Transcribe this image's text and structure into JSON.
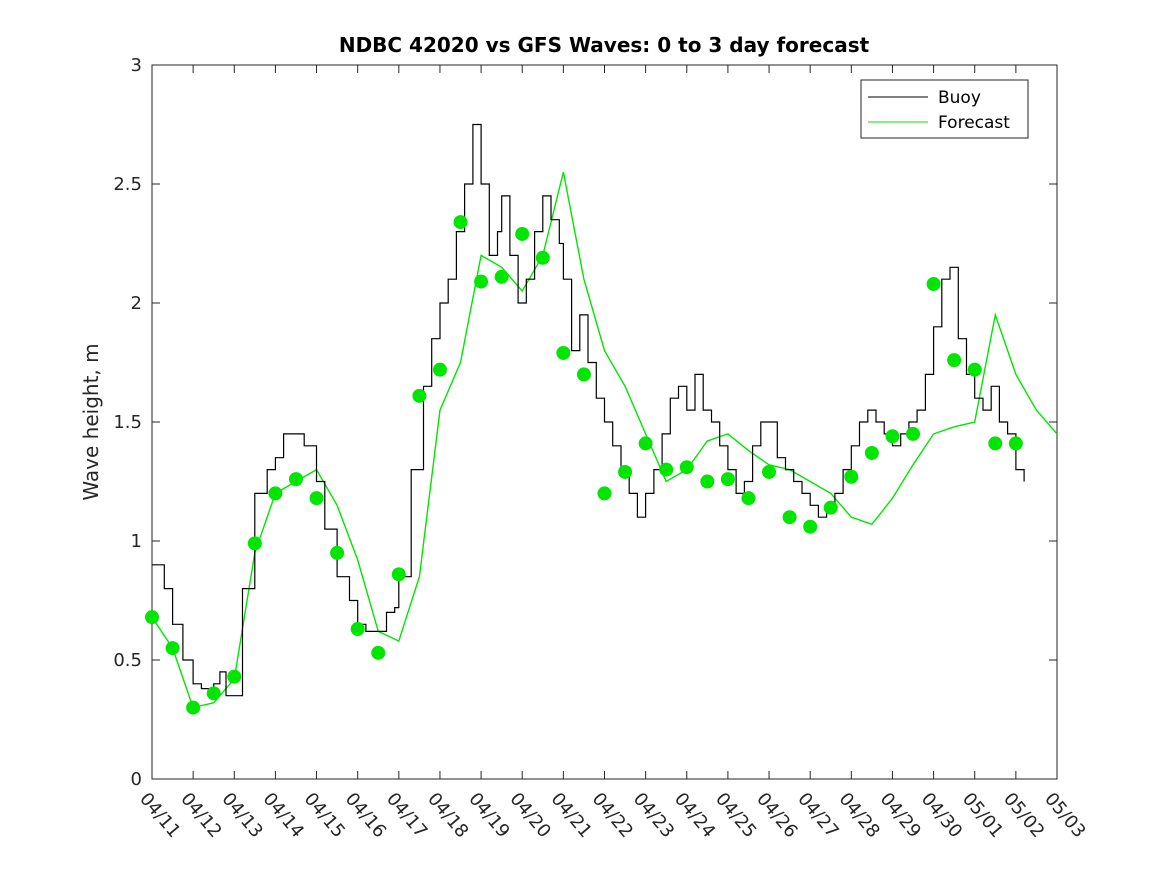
{
  "chart_data": {
    "type": "line",
    "title": "NDBC 42020 vs GFS Waves: 0 to 3 day forecast",
    "ylabel": "Wave height, m",
    "xlabel": "",
    "ylim": [
      0,
      3
    ],
    "yticks": [
      "0",
      "0.5",
      "1",
      "1.5",
      "2",
      "2.5",
      "3"
    ],
    "xlim": [
      0,
      22
    ],
    "xticks": [
      "04/11",
      "04/12",
      "04/13",
      "04/14",
      "04/15",
      "04/16",
      "04/17",
      "04/18",
      "04/19",
      "04/20",
      "04/21",
      "04/22",
      "04/23",
      "04/24",
      "04/25",
      "04/26",
      "04/27",
      "04/28",
      "04/29",
      "04/30",
      "05/01",
      "05/02",
      "05/03"
    ],
    "grid": false,
    "legend": {
      "position": "top-right",
      "entries": [
        {
          "label": "Buoy",
          "color": "#000000"
        },
        {
          "label": "Forecast",
          "color": "#00e600"
        }
      ]
    },
    "series": [
      {
        "name": "Buoy",
        "color": "#000000",
        "x": [
          0,
          0.3,
          0.5,
          0.75,
          1.0,
          1.2,
          1.5,
          1.65,
          1.8,
          2.0,
          2.2,
          2.5,
          2.8,
          3.0,
          3.2,
          3.4,
          3.7,
          4.0,
          4.2,
          4.5,
          4.8,
          5.0,
          5.2,
          5.5,
          5.7,
          5.9,
          6.0,
          6.3,
          6.6,
          6.8,
          7.0,
          7.2,
          7.4,
          7.6,
          7.8,
          8.0,
          8.2,
          8.4,
          8.5,
          8.7,
          8.9,
          9.1,
          9.3,
          9.5,
          9.7,
          9.9,
          10.0,
          10.2,
          10.4,
          10.6,
          10.8,
          11.0,
          11.2,
          11.4,
          11.6,
          11.8,
          12.0,
          12.2,
          12.4,
          12.6,
          12.8,
          13.0,
          13.2,
          13.4,
          13.6,
          13.8,
          14.0,
          14.2,
          14.4,
          14.6,
          14.8,
          15.0,
          15.2,
          15.4,
          15.6,
          15.8,
          16.0,
          16.2,
          16.4,
          16.6,
          16.8,
          17.0,
          17.2,
          17.4,
          17.6,
          17.8,
          18.0,
          18.2,
          18.4,
          18.6,
          18.8,
          19.0,
          19.2,
          19.4,
          19.6,
          19.8,
          20.0,
          20.2,
          20.4,
          20.6,
          20.8,
          21.0,
          21.2
        ],
        "values": [
          0.9,
          0.8,
          0.65,
          0.5,
          0.4,
          0.38,
          0.4,
          0.45,
          0.35,
          0.35,
          0.8,
          1.2,
          1.3,
          1.35,
          1.45,
          1.45,
          1.4,
          1.25,
          1.05,
          0.85,
          0.75,
          0.65,
          0.62,
          0.62,
          0.7,
          0.72,
          0.85,
          1.3,
          1.65,
          1.85,
          2.0,
          2.1,
          2.3,
          2.5,
          2.75,
          2.5,
          2.2,
          2.3,
          2.45,
          2.2,
          2.0,
          2.1,
          2.3,
          2.45,
          2.35,
          2.25,
          2.1,
          1.8,
          1.95,
          1.75,
          1.6,
          1.5,
          1.4,
          1.3,
          1.2,
          1.1,
          1.2,
          1.3,
          1.45,
          1.6,
          1.65,
          1.55,
          1.7,
          1.55,
          1.5,
          1.4,
          1.3,
          1.2,
          1.25,
          1.4,
          1.5,
          1.5,
          1.35,
          1.3,
          1.25,
          1.2,
          1.15,
          1.1,
          1.15,
          1.2,
          1.3,
          1.4,
          1.5,
          1.55,
          1.5,
          1.45,
          1.4,
          1.45,
          1.5,
          1.55,
          1.7,
          1.9,
          2.1,
          2.15,
          1.85,
          1.7,
          1.6,
          1.55,
          1.65,
          1.5,
          1.45,
          1.3,
          1.25
        ]
      },
      {
        "name": "Forecast",
        "color": "#00e600",
        "x": [
          0,
          0.5,
          1.0,
          1.5,
          2.0,
          2.5,
          3.0,
          3.5,
          4.0,
          4.5,
          5.0,
          5.5,
          6.0,
          6.5,
          7.0,
          7.5,
          8.0,
          8.5,
          9.0,
          9.5,
          10.0,
          10.5,
          11.0,
          11.5,
          12.0,
          12.5,
          13.0,
          13.5,
          14.0,
          14.5,
          15.0,
          15.5,
          16.0,
          16.5,
          17.0,
          17.5,
          18.0,
          18.5,
          19.0,
          19.5,
          20.0,
          20.5,
          21.0,
          21.5,
          22.0
        ],
        "values": [
          0.68,
          0.55,
          0.3,
          0.32,
          0.42,
          0.95,
          1.2,
          1.25,
          1.3,
          1.15,
          0.92,
          0.62,
          0.58,
          0.85,
          1.55,
          1.75,
          2.2,
          2.15,
          2.05,
          2.2,
          2.55,
          2.1,
          1.8,
          1.65,
          1.45,
          1.25,
          1.3,
          1.42,
          1.45,
          1.38,
          1.32,
          1.3,
          1.25,
          1.2,
          1.1,
          1.07,
          1.18,
          1.32,
          1.45,
          1.48,
          1.5,
          1.95,
          1.7,
          1.55,
          1.45
        ]
      },
      {
        "name": "Forecast (0-h analysis markers)",
        "color": "#00e600",
        "x": [
          0,
          0.5,
          1.0,
          1.5,
          2.0,
          2.5,
          3.0,
          3.5,
          4.0,
          4.5,
          5.0,
          5.5,
          6.0,
          6.5,
          7.0,
          7.5,
          8.0,
          8.5,
          9.0,
          9.5,
          10.0,
          10.5,
          11.0,
          11.5,
          12.0,
          12.5,
          13.0,
          13.5,
          14.0,
          14.5,
          15.0,
          15.5,
          16.0,
          16.5,
          17.0,
          17.5,
          18.0,
          18.5,
          19.0,
          19.5,
          20.0,
          20.5,
          21.0
        ],
        "values": [
          0.68,
          0.55,
          0.3,
          0.36,
          0.43,
          0.99,
          1.2,
          1.26,
          1.18,
          0.95,
          0.63,
          0.53,
          0.86,
          1.61,
          1.72,
          2.34,
          2.09,
          2.11,
          2.29,
          2.19,
          1.79,
          1.7,
          1.2,
          1.29,
          1.41,
          1.3,
          1.31,
          1.25,
          1.26,
          1.18,
          1.29,
          1.1,
          1.06,
          1.14,
          1.27,
          1.37,
          1.44,
          1.45,
          2.08,
          1.76,
          1.72,
          1.41,
          1.41
        ]
      }
    ]
  }
}
